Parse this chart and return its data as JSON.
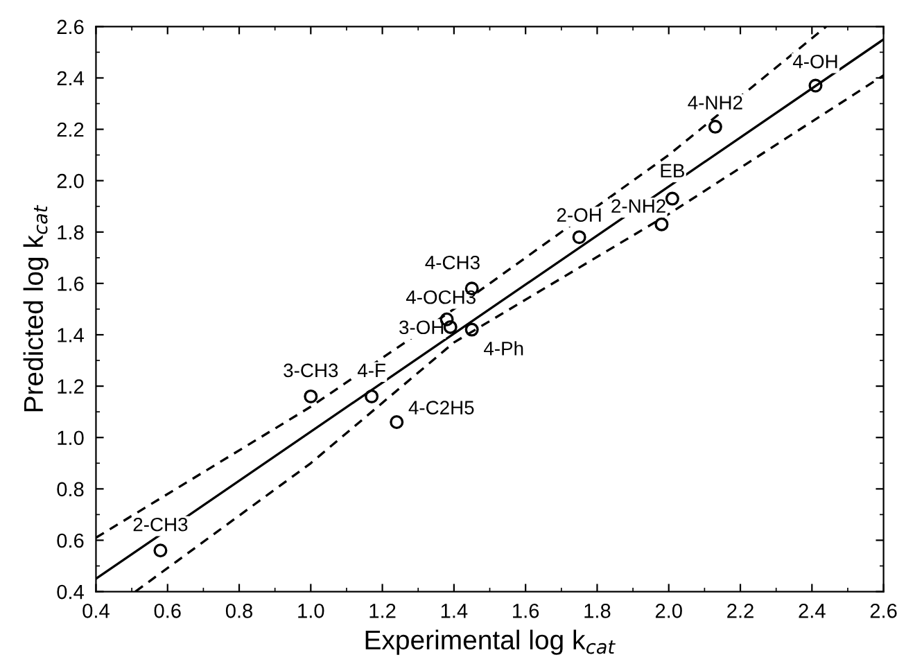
{
  "chart_data": {
    "type": "scatter",
    "xlabel": "Experimental log k$_{cat}$",
    "ylabel": "Predicted log k$_{cat}$",
    "xlim": [
      0.4,
      2.6
    ],
    "ylim": [
      0.4,
      2.6
    ],
    "xticks": [
      {
        "value": 0.4,
        "label": "0.4"
      },
      {
        "value": 0.6,
        "label": "0.6"
      },
      {
        "value": 0.8,
        "label": "0.8"
      },
      {
        "value": 1.0,
        "label": "1.0"
      },
      {
        "value": 1.2,
        "label": "1.2"
      },
      {
        "value": 1.4,
        "label": "1.4"
      },
      {
        "value": 1.6,
        "label": "1.6"
      },
      {
        "value": 1.8,
        "label": "1.8"
      },
      {
        "value": 2.0,
        "label": "2.0"
      },
      {
        "value": 2.2,
        "label": "2.2"
      },
      {
        "value": 2.4,
        "label": "2.4"
      },
      {
        "value": 2.6,
        "label": "2.6"
      }
    ],
    "yticks": [
      {
        "value": 0.4,
        "label": "0.4"
      },
      {
        "value": 0.6,
        "label": "0.6"
      },
      {
        "value": 0.8,
        "label": "0.8"
      },
      {
        "value": 1.0,
        "label": "1.0"
      },
      {
        "value": 1.2,
        "label": "1.2"
      },
      {
        "value": 1.4,
        "label": "1.4"
      },
      {
        "value": 1.6,
        "label": "1.6"
      },
      {
        "value": 1.8,
        "label": "1.8"
      },
      {
        "value": 2.0,
        "label": "2.0"
      },
      {
        "value": 2.2,
        "label": "2.2"
      },
      {
        "value": 2.4,
        "label": "2.4"
      },
      {
        "value": 2.6,
        "label": "2.6"
      }
    ],
    "grid": false,
    "legend": false,
    "series": [
      {
        "color": "#000000",
        "marker": "circle",
        "x": [
          0.58,
          1.0,
          1.17,
          1.24,
          1.39,
          1.38,
          1.45,
          1.45,
          1.75,
          1.98,
          2.01,
          2.13,
          2.41
        ],
        "values": [
          0.56,
          1.16,
          1.16,
          1.06,
          1.43,
          1.46,
          1.58,
          1.42,
          1.78,
          1.83,
          1.93,
          2.21,
          2.37
        ]
      },
      {
        "type": "line",
        "color": "#000000",
        "line_style": "solid",
        "x": [
          0.4,
          2.6
        ],
        "values": [
          0.45,
          2.55
        ]
      },
      {
        "type": "line",
        "color": "#000000",
        "line_style": "dashed",
        "x": [
          0.4,
          1.0,
          1.4,
          2.0,
          2.44
        ],
        "values": [
          0.61,
          1.12,
          1.5,
          2.1,
          2.6
        ]
      },
      {
        "type": "line",
        "color": "#000000",
        "line_style": "dashed",
        "x": [
          0.51,
          1.0,
          1.4,
          2.0,
          2.6
        ],
        "values": [
          0.4,
          0.9,
          1.37,
          1.87,
          2.41
        ]
      }
    ],
    "annotations": [
      {
        "text": "2-CH3",
        "x": 0.58,
        "y": 0.56
      },
      {
        "text": "3-CH3",
        "x": 1.0,
        "y": 1.16
      },
      {
        "text": "4-F",
        "x": 1.17,
        "y": 1.16
      },
      {
        "text": "4-C2H5",
        "x": 1.24,
        "y": 1.06
      },
      {
        "text": "3-OH",
        "x": 1.39,
        "y": 1.43
      },
      {
        "text": "4-OCH3",
        "x": 1.38,
        "y": 1.46
      },
      {
        "text": "4-CH3",
        "x": 1.45,
        "y": 1.58
      },
      {
        "text": "4-Ph",
        "x": 1.45,
        "y": 1.42
      },
      {
        "text": "2-OH",
        "x": 1.75,
        "y": 1.78
      },
      {
        "text": "2-NH2",
        "x": 1.98,
        "y": 1.83
      },
      {
        "text": "EB",
        "x": 2.01,
        "y": 1.93
      },
      {
        "text": "4-NH2",
        "x": 2.13,
        "y": 2.21
      },
      {
        "text": "4-OH",
        "x": 2.41,
        "y": 2.37
      }
    ]
  }
}
